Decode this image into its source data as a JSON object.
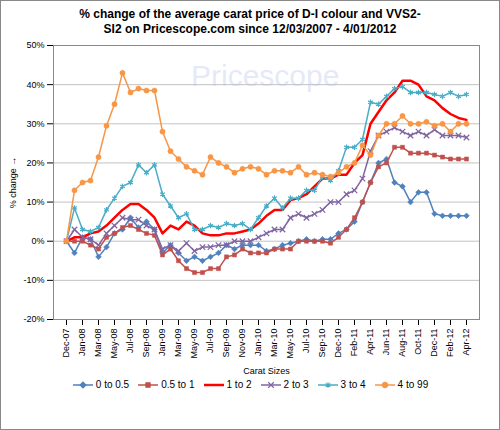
{
  "chart_data": {
    "type": "line",
    "title": "% change of the average carat price of  D-I colour and VVS2-SI2  on Pricescope.com since 12/03/2007 - 4/01/2012",
    "x_label": "Carat Sizes",
    "y_label": "% change",
    "annotations": [
      {
        "text": "Pricescope"
      }
    ],
    "categories": [
      "Dec-07",
      null,
      "Jan-08",
      null,
      "Mar-08",
      null,
      "May-08",
      null,
      "Jul-08",
      null,
      "Sep-08",
      null,
      "Jan-09",
      null,
      "Mar-09",
      null,
      "May-09",
      null,
      "Jul-09",
      null,
      "Sep-09",
      null,
      "Nov-09",
      null,
      "Jan-10",
      null,
      "Mar-10",
      null,
      "May-10",
      null,
      "Jul-10",
      null,
      "Sep-10",
      null,
      "Dec-10",
      null,
      "Feb-11",
      null,
      "Apr-11",
      null,
      "Jun-11",
      null,
      "Aug-11",
      null,
      "Oct-11",
      null,
      "Dec-11",
      null,
      "Feb-12",
      null,
      "Apr-12"
    ],
    "series": [
      {
        "name": "0 to 0.5",
        "color": "#4f81bd",
        "marker": "diamond",
        "values": [
          0,
          -3,
          1,
          0.5,
          -4,
          -1.5,
          2,
          3,
          6,
          3.5,
          5,
          3,
          -3,
          -1,
          -3,
          -5,
          -4,
          -5,
          -4,
          -3,
          -1,
          -2,
          -1,
          -1,
          -1,
          -2.5,
          -2,
          -1,
          -0.5,
          0,
          0.5,
          0,
          0.5,
          0.5,
          2,
          3,
          5,
          10,
          15,
          20,
          21,
          15,
          14,
          10,
          12.5,
          12.5,
          7,
          6.5,
          6.5,
          6.5,
          6.5
        ]
      },
      {
        "name": "0.5  to 1",
        "color": "#c0504d",
        "marker": "square",
        "values": [
          0,
          0,
          0,
          -1,
          -2,
          1,
          2,
          3.5,
          4,
          3,
          2,
          1.5,
          -3.5,
          -2,
          -5,
          -7,
          -8,
          -8,
          -7,
          -7,
          -4,
          -3.5,
          -2,
          -3,
          -3,
          -3,
          -2,
          -2,
          -2,
          0,
          0,
          0,
          0,
          -0.5,
          1,
          3,
          6,
          10,
          15,
          19,
          20,
          24,
          24,
          22.5,
          22.5,
          22.5,
          22,
          21.5,
          21,
          21,
          21
        ]
      },
      {
        "name": "1 to 2",
        "color": "#ff0000",
        "marker": "none",
        "values": [
          0,
          1,
          1,
          2,
          2.5,
          4,
          6,
          8,
          9.5,
          9.5,
          8,
          6,
          2,
          4,
          3,
          5,
          4,
          2,
          1.5,
          1.5,
          2,
          2,
          2.5,
          3,
          4.5,
          6.5,
          8,
          8,
          10.5,
          11,
          12,
          14,
          16,
          16,
          17,
          17,
          20,
          22,
          30,
          33,
          36,
          38,
          41,
          41,
          40,
          37,
          36,
          34,
          32.5,
          31.5,
          31
        ]
      },
      {
        "name": "2 to 3",
        "color": "#8064a2",
        "marker": "cross",
        "values": [
          0,
          3,
          1,
          0.5,
          -1,
          2,
          4,
          6,
          5.5,
          5.5,
          4,
          3,
          -2,
          -1,
          -2.5,
          -0.5,
          -2.5,
          -1.5,
          -1.5,
          -1,
          -1,
          0,
          0,
          0,
          1,
          2,
          3,
          3,
          6,
          7,
          6,
          7,
          8,
          10,
          10,
          12,
          13,
          16,
          23,
          27,
          28,
          29,
          28,
          27,
          28,
          27,
          28.5,
          27,
          27,
          27,
          26.5
        ]
      },
      {
        "name": "3 to 4",
        "color": "#4bacc6",
        "marker": "star",
        "values": [
          0,
          8.5,
          3,
          2.5,
          3.5,
          8,
          11,
          14,
          15,
          19.5,
          17.5,
          19.5,
          12,
          9,
          6,
          7,
          3,
          3,
          4,
          3.5,
          4.5,
          4,
          4.5,
          3,
          6,
          9,
          11,
          8.5,
          11,
          11,
          13,
          13,
          16.5,
          15.5,
          18,
          24,
          24,
          26,
          35.5,
          35,
          37,
          39,
          39.5,
          38,
          38,
          38,
          37.5,
          37,
          38,
          37,
          37.5
        ]
      },
      {
        "name": "4 to 99",
        "color": "#f79646",
        "marker": "circle",
        "values": [
          0,
          13,
          15,
          15.5,
          21.5,
          29.5,
          35,
          43,
          38,
          39,
          38.5,
          38.5,
          28,
          23,
          21,
          19,
          18,
          17,
          21.5,
          20,
          19,
          17.5,
          18.5,
          19,
          18.5,
          17,
          18,
          18,
          17.5,
          19,
          17,
          17.5,
          17,
          16.5,
          17.5,
          19,
          20,
          24.5,
          22,
          27,
          30,
          30,
          32,
          30,
          30,
          30.5,
          29.5,
          30,
          28,
          30,
          30
        ]
      }
    ],
    "ylim": [
      -20,
      50
    ],
    "yticks": [
      {
        "value": -20,
        "label": "-20%"
      },
      {
        "value": -10,
        "label": "-10%"
      },
      {
        "value": 0,
        "label": "0%"
      },
      {
        "value": 10,
        "label": "10%"
      },
      {
        "value": 20,
        "label": "20%"
      },
      {
        "value": 30,
        "label": "30%"
      },
      {
        "value": 40,
        "label": "40%"
      },
      {
        "value": 50,
        "label": "50%"
      }
    ],
    "grid": true,
    "legend": "bottom"
  }
}
